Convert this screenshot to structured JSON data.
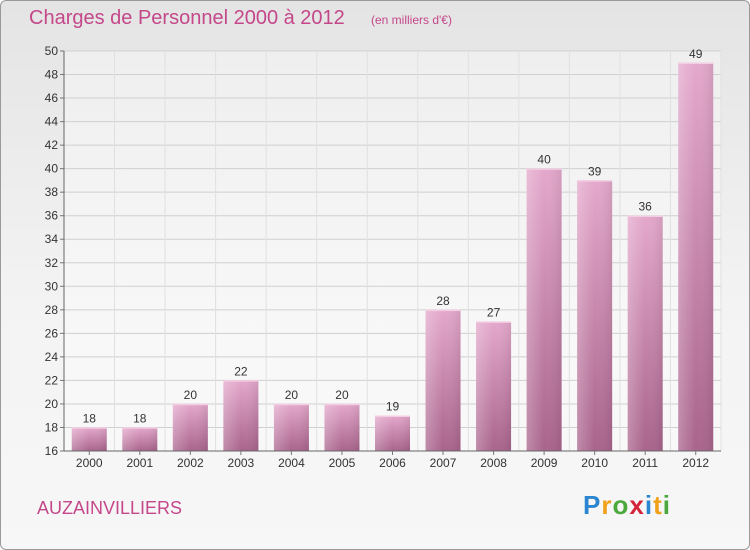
{
  "header": {
    "title": "Charges de Personnel 2000 à 2012",
    "subtitle": "(en milliers d'€)"
  },
  "footer": {
    "commune": "AUZAINVILLIERS",
    "logo_text": "Proxiti"
  },
  "colors": {
    "text_accent": "#c4478a",
    "bar_light": "#e4a8cc",
    "bar_dark": "#a9648c"
  },
  "chart_data": {
    "type": "bar",
    "title": "Charges de Personnel 2000 à 2012",
    "subtitle": "(en milliers d'€)",
    "categories": [
      "2000",
      "2001",
      "2002",
      "2003",
      "2004",
      "2005",
      "2006",
      "2007",
      "2008",
      "2009",
      "2010",
      "2011",
      "2012"
    ],
    "values": [
      18,
      18,
      20,
      22,
      20,
      20,
      19,
      28,
      27,
      40,
      39,
      36,
      49
    ],
    "ylim": [
      16,
      50
    ],
    "yticks": [
      16,
      18,
      20,
      22,
      24,
      26,
      28,
      30,
      32,
      34,
      36,
      38,
      40,
      42,
      44,
      46,
      48,
      50
    ],
    "grid": true,
    "data_labels": true
  }
}
